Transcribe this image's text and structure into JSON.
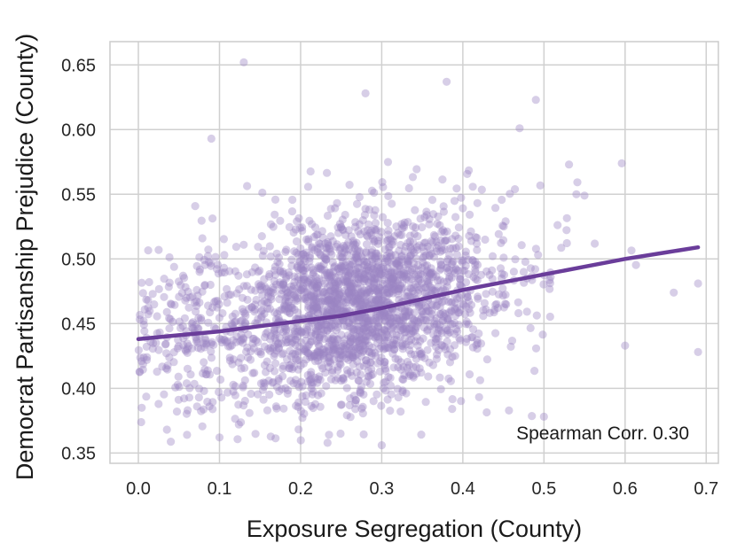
{
  "chart_data": {
    "type": "scatter",
    "xlabel": "Exposure Segregation (County)",
    "ylabel": "Democrat Partisanship Prejudice (County)",
    "xlim": [
      -0.035,
      0.715
    ],
    "ylim": [
      0.342,
      0.668
    ],
    "x_ticks": [
      0.0,
      0.1,
      0.2,
      0.3,
      0.4,
      0.5,
      0.6,
      0.7
    ],
    "x_tick_labels": [
      "0.0",
      "0.1",
      "0.2",
      "0.3",
      "0.4",
      "0.5",
      "0.6",
      "0.7"
    ],
    "y_ticks": [
      0.35,
      0.4,
      0.45,
      0.5,
      0.55,
      0.6,
      0.65
    ],
    "y_tick_labels": [
      "0.35",
      "0.40",
      "0.45",
      "0.50",
      "0.55",
      "0.60",
      "0.65"
    ],
    "grid": true,
    "annotation": "Spearman Corr. 0.30",
    "colors": {
      "points": "#9c84c4",
      "trend": "#6a3d9a",
      "grid": "#d0d0d0",
      "frame": "#cccccc"
    },
    "scatter_summary": {
      "n_points": 2400,
      "x_center": 0.27,
      "x_spread": 0.09,
      "y_intercept": 0.438,
      "y_slope": 0.1,
      "y_noise": 0.035,
      "outliers": [
        {
          "x": 0.13,
          "y": 0.652
        },
        {
          "x": 0.28,
          "y": 0.628
        },
        {
          "x": 0.38,
          "y": 0.637
        },
        {
          "x": 0.09,
          "y": 0.593
        },
        {
          "x": 0.49,
          "y": 0.623
        },
        {
          "x": 0.69,
          "y": 0.481
        },
        {
          "x": 0.69,
          "y": 0.428
        },
        {
          "x": 0.6,
          "y": 0.433
        },
        {
          "x": 0.5,
          "y": 0.378
        },
        {
          "x": 0.3,
          "y": 0.356
        },
        {
          "x": 0.06,
          "y": 0.364
        },
        {
          "x": 0.1,
          "y": 0.362
        },
        {
          "x": 0.54,
          "y": 0.55
        },
        {
          "x": 0.47,
          "y": 0.601
        },
        {
          "x": 0.66,
          "y": 0.474
        }
      ]
    },
    "trend_line": {
      "x": [
        0.0,
        0.05,
        0.1,
        0.15,
        0.2,
        0.25,
        0.3,
        0.35,
        0.4,
        0.45,
        0.5,
        0.55,
        0.6,
        0.65,
        0.69
      ],
      "y": [
        0.438,
        0.441,
        0.444,
        0.448,
        0.452,
        0.456,
        0.462,
        0.469,
        0.476,
        0.482,
        0.488,
        0.494,
        0.5,
        0.505,
        0.509
      ]
    }
  }
}
